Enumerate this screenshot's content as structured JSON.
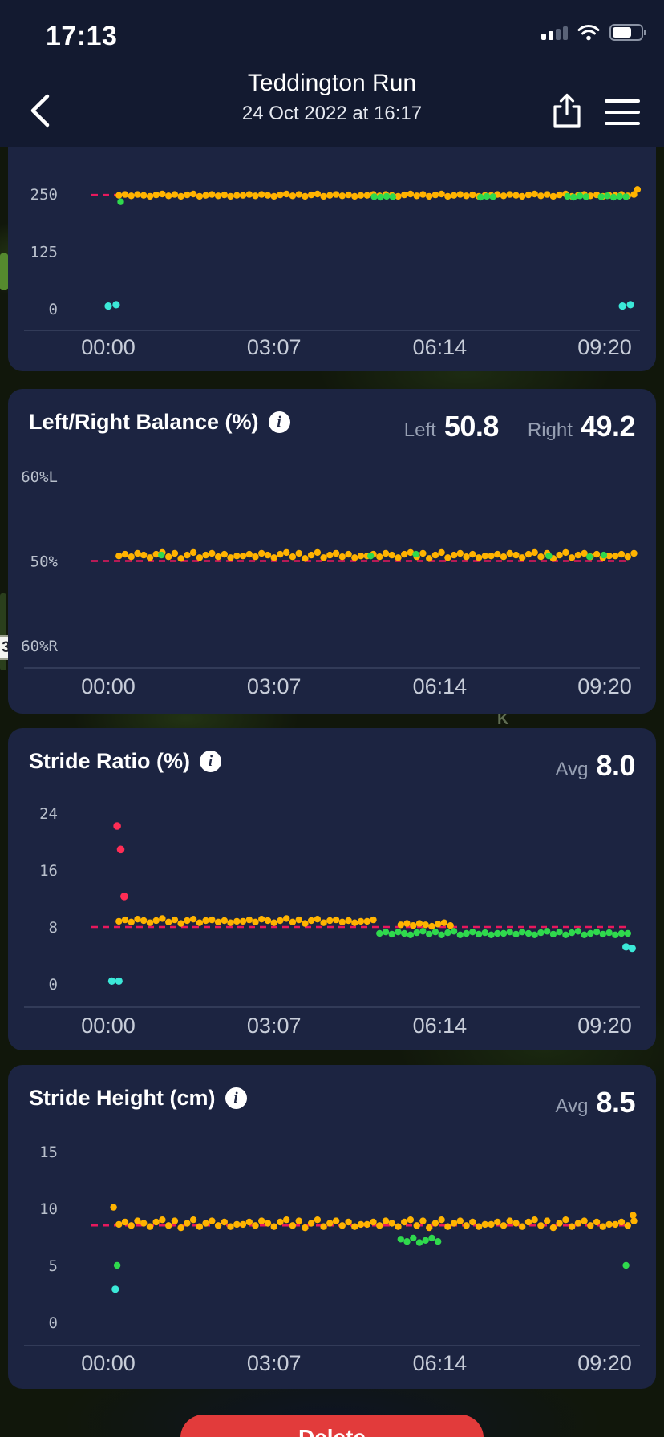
{
  "status_bar": {
    "time": "17:13"
  },
  "nav": {
    "title": "Teddington Run",
    "subtitle": "24 Oct 2022 at 16:17"
  },
  "icons": {
    "back": "chevron-left",
    "share": "share-up-arrow",
    "menu": "hamburger",
    "info_glyph": "i",
    "signal": "cellular-bars",
    "wifi": "wifi",
    "battery": "battery"
  },
  "colors": {
    "card_bg": "#1C2441",
    "header_bg": "#131A30",
    "yellow": "#FFB300",
    "green": "#2FD94D",
    "cyan": "#3BE8D8",
    "pink": "#FF2D55",
    "ref_line": "#E8185D",
    "delete_red": "#E23B3B"
  },
  "map": {
    "badge": "3",
    "letter": "K"
  },
  "footer": {
    "delete_label": "Delete"
  },
  "chart_data": [
    {
      "type": "scatter",
      "title": "",
      "x_ticks": [
        {
          "t": 0,
          "label": "00:00"
        },
        {
          "t": 187,
          "label": "03:07"
        },
        {
          "t": 374,
          "label": "06:14"
        },
        {
          "t": 560,
          "label": "09:20"
        }
      ],
      "y_ticks": [
        {
          "v": 250,
          "label": "250"
        },
        {
          "v": 125,
          "label": "125"
        },
        {
          "v": 0,
          "label": "0"
        }
      ],
      "ref_line": 248,
      "series": [
        {
          "name": "main",
          "color": "#FFB300",
          "x0": 12,
          "dx": 7,
          "values": [
            247,
            249,
            246,
            249,
            247,
            245,
            248,
            250,
            246,
            249,
            245,
            248,
            250,
            245,
            247,
            249,
            246,
            248,
            245,
            247,
            247,
            249,
            246,
            249,
            247,
            245,
            248,
            250,
            246,
            249,
            245,
            248,
            250,
            245,
            247,
            249,
            246,
            248,
            245,
            247,
            247,
            249,
            246,
            249,
            247,
            245,
            248,
            250,
            246,
            249,
            245,
            248,
            250,
            245,
            247,
            249,
            246,
            248,
            245,
            247,
            247,
            249,
            246,
            249,
            247,
            245,
            248,
            250,
            246,
            249,
            245,
            248,
            250,
            245,
            247,
            249,
            246,
            248,
            245,
            247,
            247,
            249,
            246,
            249
          ]
        },
        {
          "name": "green-run-1",
          "color": "#2FD94D",
          "x0": 300,
          "dx": 7,
          "values": [
            244,
            243,
            245,
            244
          ]
        },
        {
          "name": "green-run-2",
          "color": "#2FD94D",
          "x0": 420,
          "dx": 7,
          "values": [
            243,
            245,
            244
          ]
        },
        {
          "name": "green-run-3",
          "color": "#2FD94D",
          "x0": 518,
          "dx": 7,
          "values": [
            245,
            243,
            246,
            244
          ]
        },
        {
          "name": "green-run-4",
          "color": "#2FD94D",
          "x0": 556,
          "dx": 7,
          "values": [
            244,
            246,
            243,
            245,
            244
          ]
        },
        {
          "name": "green-outlier",
          "color": "#2FD94D",
          "points": [
            [
              14,
              233
            ]
          ]
        },
        {
          "name": "cyan-outliers",
          "color": "#3BE8D8",
          "r": 4.6,
          "points": [
            [
              0,
              6
            ],
            [
              9,
              9
            ],
            [
              580,
              6
            ],
            [
              589,
              9
            ]
          ]
        },
        {
          "name": "yellow-outlier-end",
          "color": "#FFB300",
          "points": [
            [
              597,
              260
            ]
          ]
        }
      ]
    },
    {
      "type": "scatter",
      "title": "Left/Right Balance (%)",
      "stats": [
        {
          "label": "Left",
          "value": "50.8"
        },
        {
          "label": "Right",
          "value": "49.2"
        }
      ],
      "x_ticks": [
        {
          "t": 0,
          "label": "00:00"
        },
        {
          "t": 187,
          "label": "03:07"
        },
        {
          "t": 374,
          "label": "06:14"
        },
        {
          "t": 560,
          "label": "09:20"
        }
      ],
      "y_ticks": [
        {
          "v": 60,
          "label": "60%L"
        },
        {
          "v": 50,
          "label": "50%"
        },
        {
          "v": 40,
          "label": "60%R"
        }
      ],
      "ref_line": 50,
      "series": [
        {
          "name": "balance-main",
          "color": "#FFB300",
          "x0": 12,
          "dx": 7,
          "values": [
            50.6,
            50.8,
            50.5,
            50.9,
            50.7,
            50.4,
            50.8,
            51,
            50.5,
            50.9,
            50.3,
            50.7,
            51,
            50.4,
            50.7,
            50.9,
            50.5,
            50.8,
            50.4,
            50.6,
            50.6,
            50.8,
            50.5,
            50.9,
            50.7,
            50.4,
            50.8,
            51,
            50.5,
            50.9,
            50.3,
            50.7,
            51,
            50.4,
            50.7,
            50.9,
            50.5,
            50.8,
            50.4,
            50.6,
            50.6,
            50.8,
            50.5,
            50.9,
            50.7,
            50.4,
            50.8,
            51,
            50.5,
            50.9,
            50.3,
            50.7,
            51,
            50.4,
            50.7,
            50.9,
            50.5,
            50.8,
            50.4,
            50.6,
            50.6,
            50.8,
            50.5,
            50.9,
            50.7,
            50.4,
            50.8,
            51,
            50.5,
            50.9,
            50.3,
            50.7,
            51,
            50.4,
            50.7,
            50.9,
            50.5,
            50.8,
            50.4,
            50.6,
            50.6,
            50.8,
            50.5,
            50.9
          ]
        },
        {
          "name": "balance-green-dots",
          "color": "#2FD94D",
          "points": [
            [
              60,
              50.7
            ],
            [
              296,
              50.6
            ],
            [
              347,
              50.8
            ],
            [
              497,
              50.6
            ],
            [
              543,
              50.5
            ],
            [
              559,
              50.7
            ]
          ]
        }
      ]
    },
    {
      "type": "scatter",
      "title": "Stride Ratio (%)",
      "stats": [
        {
          "label": "Avg",
          "value": "8.0"
        }
      ],
      "x_ticks": [
        {
          "t": 0,
          "label": "00:00"
        },
        {
          "t": 187,
          "label": "03:07"
        },
        {
          "t": 374,
          "label": "06:14"
        },
        {
          "t": 560,
          "label": "09:20"
        }
      ],
      "y_ticks": [
        {
          "v": 24,
          "label": "24"
        },
        {
          "v": 16,
          "label": "16"
        },
        {
          "v": 8,
          "label": "8"
        },
        {
          "v": 0,
          "label": "0"
        }
      ],
      "ref_line": 8,
      "series": [
        {
          "name": "ratio-first-half",
          "color": "#FFB300",
          "x0": 12,
          "dx": 7,
          "values": [
            8.8,
            9,
            8.7,
            9.1,
            8.9,
            8.6,
            8.9,
            9.2,
            8.7,
            9,
            8.5,
            8.9,
            9.1,
            8.6,
            8.9,
            9,
            8.7,
            8.9,
            8.6,
            8.8,
            8.8,
            9,
            8.7,
            9.1,
            8.9,
            8.6,
            8.9,
            9.2,
            8.7,
            9,
            8.5,
            8.9,
            9.1,
            8.6,
            8.9,
            9,
            8.7,
            8.9,
            8.6,
            8.8,
            8.8,
            9
          ]
        },
        {
          "name": "ratio-second-half",
          "color": "#2FD94D",
          "x0": 306,
          "dx": 7,
          "values": [
            7.1,
            7.3,
            7,
            7.3,
            7.1,
            6.9,
            7.2,
            7.4,
            7,
            7.3,
            6.9,
            7.2,
            7.4,
            6.9,
            7.1,
            7.3,
            7,
            7.2,
            6.9,
            7.1,
            7.1,
            7.3,
            7,
            7.3,
            7.1,
            6.9,
            7.2,
            7.4,
            7,
            7.3,
            6.9,
            7.2,
            7.4,
            6.9,
            7.1,
            7.3,
            7,
            7.2,
            6.9,
            7.1,
            7.1
          ]
        },
        {
          "name": "ratio-yellow-patch",
          "color": "#FFB300",
          "x0": 330,
          "dx": 7,
          "values": [
            8.3,
            8.5,
            8.2,
            8.5,
            8.3,
            8.1,
            8.4,
            8.6,
            8.2
          ]
        },
        {
          "name": "pink-outliers",
          "color": "#FF2D55",
          "r": 4.8,
          "points": [
            [
              10,
              22.2
            ],
            [
              14,
              18.9
            ],
            [
              18,
              12.3
            ]
          ]
        },
        {
          "name": "cyan-outliers",
          "color": "#3BE8D8",
          "r": 4.6,
          "points": [
            [
              4,
              0.4
            ],
            [
              12,
              0.4
            ],
            [
              584,
              5.2
            ],
            [
              591,
              5
            ]
          ]
        }
      ]
    },
    {
      "type": "scatter",
      "title": "Stride Height (cm)",
      "stats": [
        {
          "label": "Avg",
          "value": "8.5"
        }
      ],
      "x_ticks": [
        {
          "t": 0,
          "label": "00:00"
        },
        {
          "t": 187,
          "label": "03:07"
        },
        {
          "t": 374,
          "label": "06:14"
        },
        {
          "t": 560,
          "label": "09:20"
        }
      ],
      "y_ticks": [
        {
          "v": 15,
          "label": "15"
        },
        {
          "v": 10,
          "label": "10"
        },
        {
          "v": 5,
          "label": "5"
        },
        {
          "v": 0,
          "label": "0"
        }
      ],
      "ref_line": 8.5,
      "series": [
        {
          "name": "height-main",
          "color": "#FFB300",
          "x0": 12,
          "dx": 7,
          "values": [
            8.6,
            8.8,
            8.5,
            8.9,
            8.7,
            8.4,
            8.8,
            9,
            8.5,
            8.9,
            8.3,
            8.7,
            9,
            8.4,
            8.7,
            8.9,
            8.5,
            8.8,
            8.4,
            8.6,
            8.6,
            8.8,
            8.5,
            8.9,
            8.7,
            8.4,
            8.8,
            9,
            8.5,
            8.9,
            8.3,
            8.7,
            9,
            8.4,
            8.7,
            8.9,
            8.5,
            8.8,
            8.4,
            8.6,
            8.6,
            8.8,
            8.5,
            8.9,
            8.7,
            8.4,
            8.8,
            9,
            8.5,
            8.9,
            8.3,
            8.7,
            9,
            8.4,
            8.7,
            8.9,
            8.5,
            8.8,
            8.4,
            8.6,
            8.6,
            8.8,
            8.5,
            8.9,
            8.7,
            8.4,
            8.8,
            9,
            8.5,
            8.9,
            8.3,
            8.7,
            9,
            8.4,
            8.7,
            8.9,
            8.5,
            8.8,
            8.4,
            8.6,
            8.6,
            8.8,
            8.5,
            8.9
          ]
        },
        {
          "name": "height-green-run",
          "color": "#2FD94D",
          "x0": 330,
          "dx": 7,
          "values": [
            7.3,
            7.1,
            7.4,
            7,
            7.2,
            7.4,
            7.1
          ]
        },
        {
          "name": "height-yellow-outliers",
          "color": "#FFB300",
          "points": [
            [
              6,
              10.1
            ],
            [
              592,
              9.4
            ]
          ]
        },
        {
          "name": "height-green-outliers",
          "color": "#2FD94D",
          "points": [
            [
              10,
              5
            ],
            [
              584,
              5
            ]
          ]
        },
        {
          "name": "height-cyan-outlier",
          "color": "#3BE8D8",
          "r": 4.6,
          "points": [
            [
              8,
              2.9
            ]
          ]
        }
      ]
    }
  ]
}
